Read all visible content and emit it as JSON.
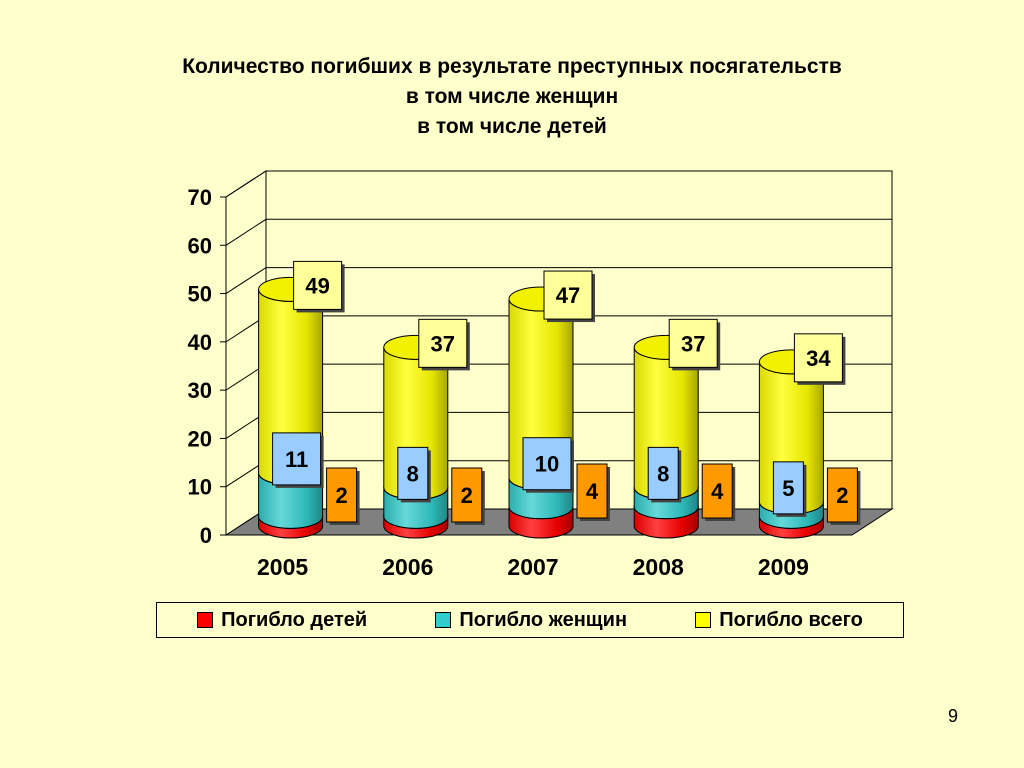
{
  "title_lines": [
    "Количество погибших в результате преступных посягательств",
    "в том числе женщин",
    "в том числе детей"
  ],
  "page_number": "9",
  "colors": {
    "background": "#FFFFCC",
    "children": "#FF0000",
    "women": "#33CCCC",
    "total": "#FFFF00",
    "children_label_bg": "#FF9900",
    "women_label_bg": "#99CCFF",
    "total_label_bg": "#FFFF99",
    "floor": "#808080"
  },
  "chart_data": {
    "type": "bar",
    "categories": [
      "2005",
      "2006",
      "2007",
      "2008",
      "2009"
    ],
    "series": [
      {
        "name": "Погибло детей",
        "values": [
          2,
          2,
          4,
          4,
          2
        ]
      },
      {
        "name": "Погибло женщин",
        "values": [
          11,
          8,
          10,
          8,
          5
        ]
      },
      {
        "name": "Погибло всего",
        "values": [
          49,
          37,
          47,
          37,
          34
        ]
      }
    ],
    "data_labels": {
      "children": [
        "2",
        "2",
        "4",
        "4",
        "2"
      ],
      "women": [
        "11",
        "8",
        "10",
        "8",
        "5"
      ],
      "total": [
        "49",
        "37",
        "47",
        "37",
        "34"
      ]
    },
    "y_ticks": [
      "0",
      "10",
      "20",
      "30",
      "40",
      "50",
      "60",
      "70"
    ],
    "ylim": [
      0,
      70
    ],
    "stacked": true,
    "three_d": true,
    "grid": true,
    "legend_position": "bottom"
  }
}
